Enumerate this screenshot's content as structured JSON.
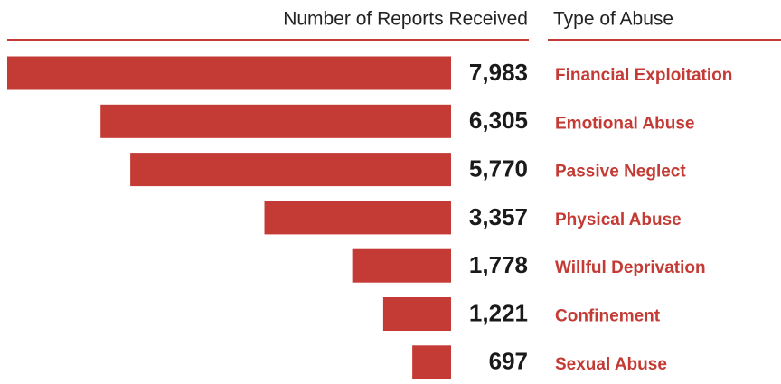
{
  "chart_data": {
    "type": "bar",
    "orientation": "horizontal",
    "value_header": "Number of Reports Received",
    "category_header": "Type of Abuse",
    "categories": [
      "Financial Exploitation",
      "Emotional Abuse",
      "Passive Neglect",
      "Physical Abuse",
      "Willful Deprivation",
      "Confinement",
      "Sexual Abuse"
    ],
    "values": [
      7983,
      6305,
      5770,
      3357,
      1778,
      1221,
      697
    ],
    "value_labels": [
      "7,983",
      "6,305",
      "5,770",
      "3,357",
      "1,778",
      "1,221",
      "697"
    ],
    "color": "#c43a34"
  }
}
